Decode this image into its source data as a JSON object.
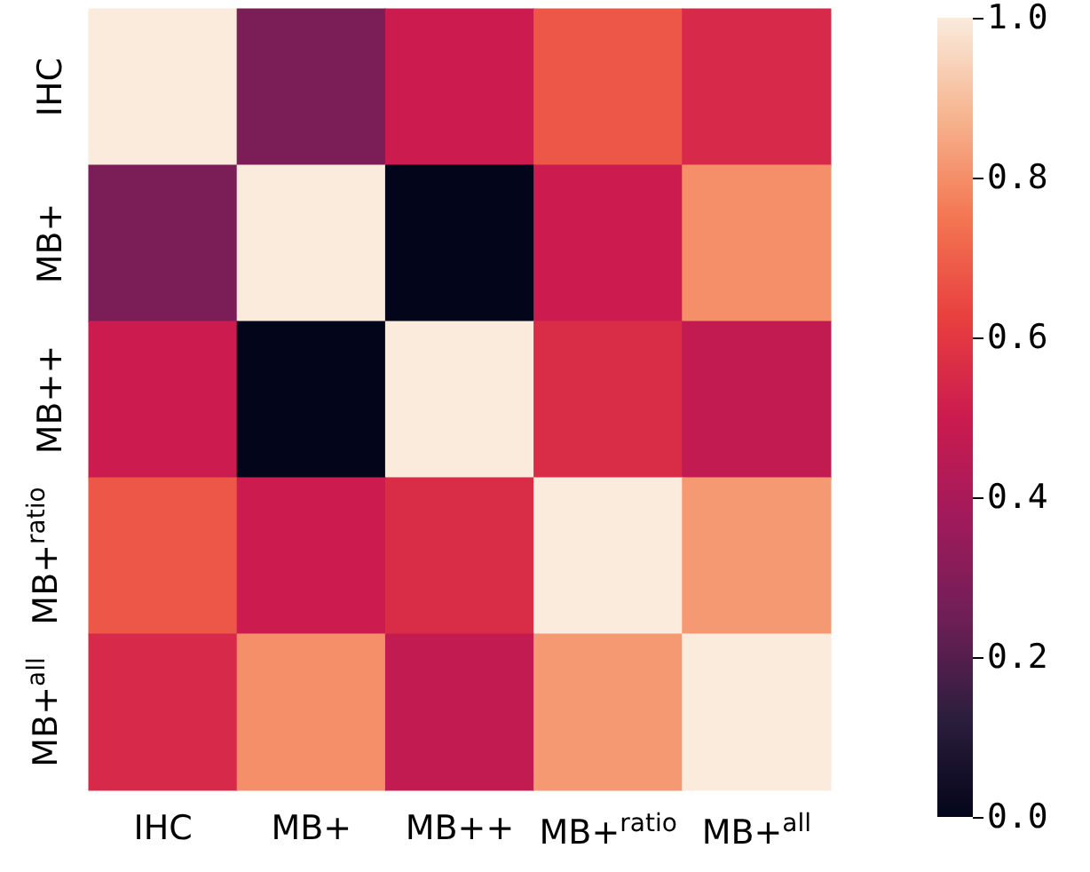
{
  "chart_data": {
    "type": "heatmap",
    "categories": [
      "IHC",
      "MB+",
      "MB++",
      "MB+$^{ratio}$",
      "MB+$^{all}$"
    ],
    "y_categories": [
      "IHC",
      "MB+",
      "MB++",
      "MB+$^{ratio}$",
      "MB+$^{all}$"
    ],
    "cells": [
      [
        1.0,
        0.28,
        0.5,
        0.68,
        0.55
      ],
      [
        0.28,
        1.0,
        0.0,
        0.5,
        0.8
      ],
      [
        0.5,
        0.0,
        1.0,
        0.56,
        0.47
      ],
      [
        0.68,
        0.5,
        0.56,
        1.0,
        0.82
      ],
      [
        0.55,
        0.8,
        0.47,
        0.82,
        1.0
      ]
    ],
    "clim": [
      0,
      1
    ],
    "cticks": [
      {
        "value": 0,
        "label": "0.0"
      },
      {
        "value": 0.2,
        "label": "0.2"
      },
      {
        "value": 0.4,
        "label": "0.4"
      },
      {
        "value": 0.6,
        "label": "0.6"
      },
      {
        "value": 0.8,
        "label": "0.8"
      },
      {
        "value": 1,
        "label": "1.0"
      }
    ]
  }
}
